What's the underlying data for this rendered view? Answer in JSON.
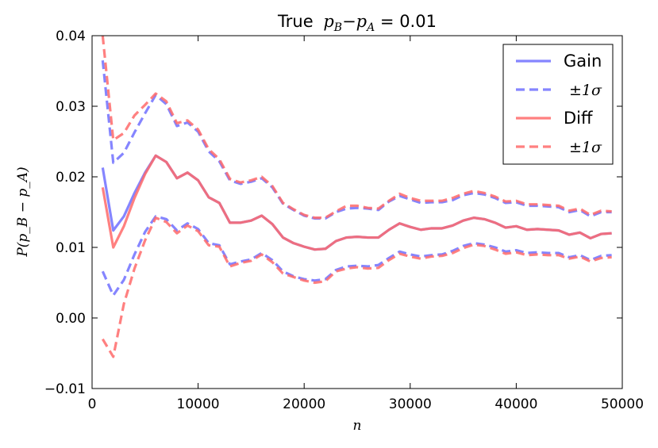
{
  "chart_data": {
    "type": "line",
    "title_prefix": "True",
    "title_math": "p",
    "title_sub_b": "B",
    "title_minus": "−",
    "title_sub_a": "A",
    "title_suffix": " = 0.01",
    "xlabel": "n",
    "ylabel": "P(p_B − p_A)",
    "xlim": [
      0,
      50000
    ],
    "ylim": [
      -0.01,
      0.04
    ],
    "x_ticks": [
      0,
      10000,
      20000,
      30000,
      40000,
      50000
    ],
    "x_tick_labels": [
      "0",
      "10000",
      "20000",
      "30000",
      "40000",
      "50000"
    ],
    "y_ticks": [
      -0.01,
      0.0,
      0.01,
      0.02,
      0.03,
      0.04
    ],
    "y_tick_labels": [
      "−0.01",
      "0.00",
      "0.01",
      "0.02",
      "0.03",
      "0.04"
    ],
    "legend_position": "top-right",
    "legend": [
      {
        "label": "Gain",
        "color": "#7070ff",
        "style": "solid"
      },
      {
        "label": "±1σ",
        "color": "#7070ff",
        "style": "dashed"
      },
      {
        "label": "Diff",
        "color": "#ff6a6a",
        "style": "solid"
      },
      {
        "label": "±1σ",
        "color": "#ff6a6a",
        "style": "dashed"
      }
    ],
    "x": [
      1000,
      2000,
      3000,
      4000,
      5000,
      6000,
      7000,
      8000,
      9000,
      10000,
      11000,
      12000,
      13000,
      14000,
      15000,
      16000,
      17000,
      18000,
      19000,
      20000,
      21000,
      22000,
      23000,
      24000,
      25000,
      26000,
      27000,
      28000,
      29000,
      30000,
      31000,
      32000,
      33000,
      34000,
      35000,
      36000,
      37000,
      38000,
      39000,
      40000,
      41000,
      42000,
      43000,
      44000,
      45000,
      46000,
      47000,
      48000,
      49000
    ],
    "series": [
      {
        "name": "Gain",
        "color": "#7070ff",
        "style": "solid",
        "values": [
          0.0213,
          0.0124,
          0.0144,
          0.0177,
          0.0206,
          0.023,
          0.0221,
          0.0198,
          0.0206,
          0.0195,
          0.0171,
          0.0163,
          0.0135,
          0.0135,
          0.0138,
          0.0145,
          0.0133,
          0.0114,
          0.0106,
          0.0101,
          0.0097,
          0.0098,
          0.0109,
          0.0114,
          0.0115,
          0.0114,
          0.0114,
          0.0125,
          0.0134,
          0.0129,
          0.0125,
          0.0127,
          0.0127,
          0.0131,
          0.0138,
          0.0142,
          0.014,
          0.0135,
          0.0128,
          0.013,
          0.0125,
          0.0126,
          0.0125,
          0.0124,
          0.0118,
          0.0121,
          0.0113,
          0.0119,
          0.012
        ]
      },
      {
        "name": "Gain +1σ",
        "color": "#7070ff",
        "style": "dashed",
        "values": [
          0.0365,
          0.022,
          0.0234,
          0.0263,
          0.029,
          0.0316,
          0.0303,
          0.0272,
          0.0277,
          0.0264,
          0.0236,
          0.0222,
          0.0195,
          0.019,
          0.0193,
          0.0198,
          0.0185,
          0.0162,
          0.0153,
          0.0145,
          0.0141,
          0.0141,
          0.015,
          0.0155,
          0.0156,
          0.0155,
          0.0153,
          0.0165,
          0.0173,
          0.0168,
          0.0163,
          0.0164,
          0.0164,
          0.0167,
          0.0174,
          0.0177,
          0.0175,
          0.017,
          0.0163,
          0.0164,
          0.0159,
          0.0159,
          0.0158,
          0.0157,
          0.015,
          0.0153,
          0.0144,
          0.015,
          0.015
        ]
      },
      {
        "name": "Gain −1σ",
        "color": "#7070ff",
        "style": "dashed",
        "values": [
          0.0066,
          0.0032,
          0.0054,
          0.009,
          0.0122,
          0.0144,
          0.014,
          0.0124,
          0.0134,
          0.0126,
          0.0106,
          0.0103,
          0.0076,
          0.008,
          0.0083,
          0.0092,
          0.0082,
          0.0066,
          0.0059,
          0.0055,
          0.0053,
          0.0055,
          0.0068,
          0.0073,
          0.0074,
          0.0073,
          0.0075,
          0.0085,
          0.0094,
          0.009,
          0.0087,
          0.0089,
          0.009,
          0.0095,
          0.0102,
          0.0106,
          0.0104,
          0.01,
          0.0094,
          0.0096,
          0.0092,
          0.0093,
          0.0092,
          0.0092,
          0.0086,
          0.0089,
          0.0082,
          0.0088,
          0.0089
        ]
      },
      {
        "name": "Diff",
        "color": "#ff6a6a",
        "style": "solid",
        "values": [
          0.0185,
          0.01,
          0.013,
          0.017,
          0.0204,
          0.023,
          0.0221,
          0.0198,
          0.0206,
          0.0195,
          0.0171,
          0.0163,
          0.0135,
          0.0135,
          0.0138,
          0.0145,
          0.0133,
          0.0114,
          0.0106,
          0.0101,
          0.0097,
          0.0098,
          0.0109,
          0.0114,
          0.0115,
          0.0114,
          0.0114,
          0.0125,
          0.0134,
          0.0129,
          0.0125,
          0.0127,
          0.0127,
          0.0131,
          0.0138,
          0.0142,
          0.014,
          0.0135,
          0.0128,
          0.013,
          0.0125,
          0.0126,
          0.0125,
          0.0124,
          0.0118,
          0.0121,
          0.0113,
          0.0119,
          0.012
        ]
      },
      {
        "name": "Diff +1σ",
        "color": "#ff6a6a",
        "style": "dashed",
        "values": [
          0.04,
          0.0252,
          0.0262,
          0.0287,
          0.0302,
          0.0318,
          0.0307,
          0.0276,
          0.028,
          0.0267,
          0.0239,
          0.0225,
          0.0197,
          0.0192,
          0.0195,
          0.02,
          0.0187,
          0.0163,
          0.0154,
          0.0146,
          0.0142,
          0.0142,
          0.0151,
          0.0159,
          0.0159,
          0.0156,
          0.0155,
          0.0166,
          0.0176,
          0.017,
          0.0166,
          0.0166,
          0.0166,
          0.017,
          0.0176,
          0.018,
          0.0177,
          0.0172,
          0.0165,
          0.0166,
          0.0161,
          0.0161,
          0.016,
          0.0159,
          0.0152,
          0.0155,
          0.0146,
          0.0152,
          0.0151
        ]
      },
      {
        "name": "Diff −1σ",
        "color": "#ff6a6a",
        "style": "dashed",
        "values": [
          -0.003,
          -0.0055,
          0.002,
          0.007,
          0.011,
          0.0142,
          0.0136,
          0.012,
          0.0131,
          0.0123,
          0.0103,
          0.0101,
          0.0073,
          0.0078,
          0.0081,
          0.009,
          0.0079,
          0.0063,
          0.0058,
          0.0053,
          0.005,
          0.0052,
          0.0066,
          0.007,
          0.0072,
          0.007,
          0.0071,
          0.0082,
          0.0091,
          0.0087,
          0.0084,
          0.0087,
          0.0088,
          0.0092,
          0.0099,
          0.0104,
          0.0102,
          0.0097,
          0.0091,
          0.0093,
          0.0089,
          0.009,
          0.0089,
          0.0089,
          0.0084,
          0.0087,
          0.008,
          0.0085,
          0.0086
        ]
      }
    ]
  }
}
